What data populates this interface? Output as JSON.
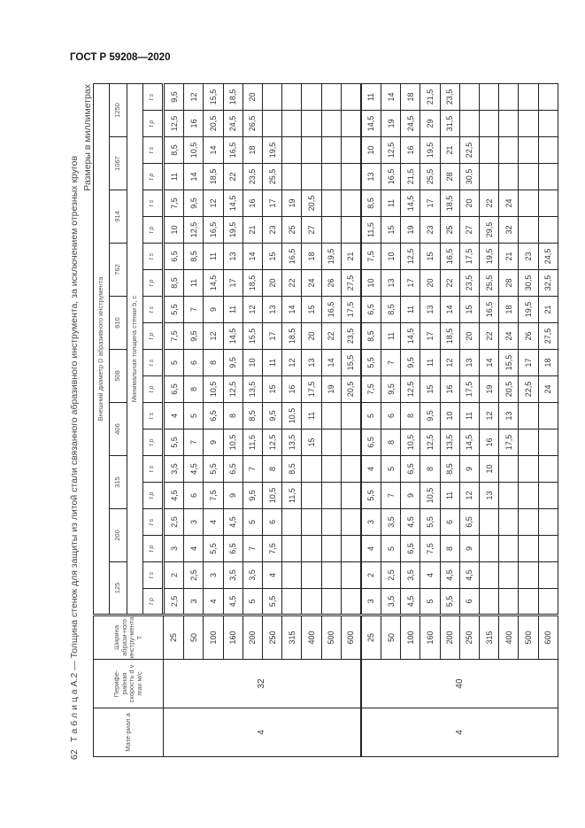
{
  "doc_header": "ГОСТ Р 59208—2020",
  "page_number": "62",
  "caption": "Т а б л и ц а  А.2 — Толщина стенок для защиты из литой стали связанного абразивного инструмента, за исключением отрезных кругов",
  "units": "Размеры в миллиметрах",
  "table": {
    "headers": {
      "material": "Мате-риал a",
      "speed": "Перифе-рийная скорость d v max м/с",
      "width": "Ширина абрази-ного инстру-мента T",
      "diameter": "Внешний диаметр D абразивного инструмента",
      "thickness": "Минимальная толщина стенки b, c",
      "tp": "t p",
      "ts": "t s"
    },
    "diameters": [
      "125",
      "200",
      "315",
      "406",
      "508",
      "610",
      "762",
      "914",
      "1067",
      "1250"
    ],
    "groups": [
      {
        "material": "4",
        "speed": "32",
        "rows": [
          {
            "width": "25",
            "values": [
              "2,5",
              "2",
              "3",
              "2,5",
              "4,5",
              "3,5",
              "5,5",
              "4",
              "6,5",
              "5",
              "7,5",
              "5,5",
              "8,5",
              "6,5",
              "10",
              "7,5",
              "11",
              "8,5",
              "12,5",
              "9,5"
            ]
          },
          {
            "width": "50",
            "values": [
              "3",
              "2,5",
              "4",
              "3",
              "6",
              "4,5",
              "7",
              "5",
              "8",
              "6",
              "9,5",
              "7",
              "11",
              "8,5",
              "12,5",
              "9,5",
              "14",
              "10,5",
              "16",
              "12"
            ]
          },
          {
            "width": "100",
            "values": [
              "4",
              "3",
              "5,5",
              "4",
              "7,5",
              "5,5",
              "9",
              "6,5",
              "10,5",
              "8",
              "12",
              "9",
              "14,5",
              "11",
              "16,5",
              "12",
              "18,5",
              "14",
              "20,5",
              "15,5"
            ]
          },
          {
            "width": "160",
            "values": [
              "4,5",
              "3,5",
              "6,5",
              "4,5",
              "9",
              "6,5",
              "10,5",
              "8",
              "12,5",
              "9,5",
              "14,5",
              "11",
              "17",
              "13",
              "19,5",
              "14,5",
              "22",
              "16,5",
              "24,5",
              "18,5"
            ]
          },
          {
            "width": "200",
            "values": [
              "5",
              "3,5",
              "7",
              "5",
              "9,5",
              "7",
              "11,5",
              "8,5",
              "13,5",
              "10",
              "15,5",
              "12",
              "18,5",
              "14",
              "21",
              "16",
              "23,5",
              "18",
              "26,5",
              "20"
            ]
          },
          {
            "width": "250",
            "values": [
              "5,5",
              "4",
              "7,5",
              "6",
              "10,5",
              "8",
              "12,5",
              "9,5",
              "15",
              "11",
              "17",
              "13",
              "20",
              "15",
              "23",
              "17",
              "25,5",
              "19,5",
              "",
              ""
            ]
          },
          {
            "width": "315",
            "values": [
              "",
              "",
              "",
              "",
              "11,5",
              "8,5",
              "13,5",
              "10,5",
              "16",
              "12",
              "18,5",
              "14",
              "22",
              "16,5",
              "25",
              "19",
              "",
              "",
              "",
              ""
            ]
          },
          {
            "width": "400",
            "values": [
              "",
              "",
              "",
              "",
              "",
              "",
              "15",
              "11",
              "17,5",
              "13",
              "20",
              "15",
              "24",
              "18",
              "27",
              "20,5",
              "",
              "",
              "",
              ""
            ]
          },
          {
            "width": "500",
            "values": [
              "",
              "",
              "",
              "",
              "",
              "",
              "",
              "",
              "19",
              "14",
              "22",
              "16,5",
              "26",
              "19,5",
              "",
              "",
              "",
              "",
              "",
              ""
            ]
          },
          {
            "width": "600",
            "values": [
              "",
              "",
              "",
              "",
              "",
              "",
              "",
              "",
              "20,5",
              "15,5",
              "23,5",
              "17,5",
              "27,5",
              "21",
              "",
              "",
              "",
              "",
              "",
              ""
            ]
          }
        ]
      },
      {
        "material": "4",
        "speed": "40",
        "rows": [
          {
            "width": "25",
            "values": [
              "3",
              "2",
              "4",
              "3",
              "5,5",
              "4",
              "6,5",
              "5",
              "7,5",
              "5,5",
              "8,5",
              "6,5",
              "10",
              "7,5",
              "11,5",
              "8,5",
              "13",
              "10",
              "14,5",
              "11"
            ]
          },
          {
            "width": "50",
            "values": [
              "3,5",
              "2,5",
              "5",
              "3,5",
              "7",
              "5",
              "8",
              "6",
              "9,5",
              "7",
              "11",
              "8,5",
              "13",
              "10",
              "15",
              "11",
              "16,5",
              "12,5",
              "19",
              "14"
            ]
          },
          {
            "width": "100",
            "values": [
              "4,5",
              "3,5",
              "6,5",
              "4,5",
              "9",
              "6,5",
              "10,5",
              "8",
              "12,5",
              "9,5",
              "14,5",
              "11",
              "17",
              "12,5",
              "19",
              "14,5",
              "21,5",
              "16",
              "24,5",
              "18"
            ]
          },
          {
            "width": "160",
            "values": [
              "5",
              "4",
              "7,5",
              "5,5",
              "10,5",
              "8",
              "12,5",
              "9,5",
              "15",
              "11",
              "17",
              "13",
              "20",
              "15",
              "23",
              "17",
              "25,5",
              "19,5",
              "29",
              "21,5"
            ]
          },
          {
            "width": "200",
            "values": [
              "5,5",
              "4,5",
              "8",
              "6",
              "11",
              "8,5",
              "13,5",
              "10",
              "16",
              "12",
              "18,5",
              "14",
              "22",
              "16,5",
              "25",
              "18,5",
              "28",
              "21",
              "31,5",
              "23,5"
            ]
          },
          {
            "width": "250",
            "values": [
              "6",
              "4,5",
              "9",
              "6,5",
              "12",
              "9",
              "14,5",
              "11",
              "17,5",
              "13",
              "20",
              "15",
              "23,5",
              "17,5",
              "27",
              "20",
              "30,5",
              "22,5",
              "",
              ""
            ]
          },
          {
            "width": "315",
            "values": [
              "",
              "",
              "",
              "",
              "13",
              "10",
              "16",
              "12",
              "19",
              "14",
              "22",
              "16,5",
              "25,5",
              "19,5",
              "29,5",
              "22",
              "",
              "",
              "",
              ""
            ]
          },
          {
            "width": "400",
            "values": [
              "",
              "",
              "",
              "",
              "",
              "",
              "17,5",
              "13",
              "20,5",
              "15,5",
              "24",
              "18",
              "28",
              "21",
              "32",
              "24",
              "",
              "",
              "",
              ""
            ]
          },
          {
            "width": "500",
            "values": [
              "",
              "",
              "",
              "",
              "",
              "",
              "",
              "",
              "22,5",
              "17",
              "26",
              "19,5",
              "30,5",
              "23",
              "",
              "",
              "",
              "",
              "",
              ""
            ]
          },
          {
            "width": "600",
            "values": [
              "",
              "",
              "",
              "",
              "",
              "",
              "",
              "",
              "24",
              "18",
              "27,5",
              "21",
              "32,5",
              "24,5",
              "",
              "",
              "",
              "",
              "",
              ""
            ]
          }
        ]
      }
    ]
  }
}
